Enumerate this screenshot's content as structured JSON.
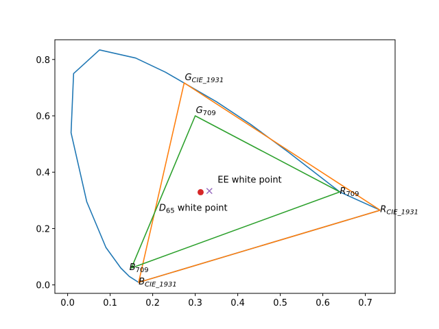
{
  "chart_data": {
    "type": "line",
    "title": "",
    "xlabel": "",
    "ylabel": "",
    "xlim": [
      -0.03,
      0.77
    ],
    "ylim": [
      -0.03,
      0.87
    ],
    "grid": false,
    "x_ticks": [
      "0.0",
      "0.1",
      "0.2",
      "0.3",
      "0.4",
      "0.5",
      "0.6",
      "0.7"
    ],
    "y_ticks": [
      "0.0",
      "0.2",
      "0.4",
      "0.6",
      "0.8"
    ],
    "series": [
      {
        "color": "#1f77b4",
        "points": [
          [
            0.735,
            0.265
          ],
          [
            0.64,
            0.33
          ],
          [
            0.52,
            0.47
          ],
          [
            0.43,
            0.57
          ],
          [
            0.35,
            0.65
          ],
          [
            0.27,
            0.72
          ],
          [
            0.23,
            0.755
          ],
          [
            0.16,
            0.805
          ],
          [
            0.075,
            0.834
          ],
          [
            0.014,
            0.75
          ],
          [
            0.008,
            0.54
          ],
          [
            0.045,
            0.295
          ],
          [
            0.09,
            0.133
          ],
          [
            0.125,
            0.06
          ],
          [
            0.145,
            0.03
          ],
          [
            0.167,
            0.009
          ],
          [
            0.735,
            0.265
          ]
        ]
      },
      {
        "color": "#ff7f0e",
        "points": [
          [
            0.735,
            0.265
          ],
          [
            0.274,
            0.717
          ],
          [
            0.167,
            0.009
          ],
          [
            0.735,
            0.265
          ]
        ]
      },
      {
        "color": "#2ca02c",
        "points": [
          [
            0.64,
            0.33
          ],
          [
            0.3,
            0.6
          ],
          [
            0.15,
            0.06
          ],
          [
            0.64,
            0.33
          ]
        ]
      }
    ],
    "markers": [
      {
        "x": 0.3127,
        "y": 0.329,
        "shape": "circle",
        "color": "#d62728"
      },
      {
        "x": 0.3333,
        "y": 0.3333,
        "shape": "x",
        "color": "#9467bd"
      }
    ],
    "annotations": [
      {
        "text": "G",
        "sub": "CIE_1931",
        "x": 0.274,
        "y": 0.717
      },
      {
        "text": "G",
        "sub": "709",
        "x": 0.3,
        "y": 0.6
      },
      {
        "text": "R",
        "sub": "709",
        "x": 0.64,
        "y": 0.33
      },
      {
        "text": "R",
        "sub": "CIE_1931",
        "x": 0.735,
        "y": 0.265
      },
      {
        "text": "B",
        "sub": "709",
        "x": 0.15,
        "y": 0.06
      },
      {
        "text": "B",
        "sub": "CIE_1931",
        "x": 0.167,
        "y": 0.009
      },
      {
        "text": "D",
        "sub": "65",
        "suffix": " white point",
        "x": 0.215,
        "y": 0.27
      },
      {
        "text": "EE white point",
        "x": 0.3333,
        "y": 0.3333
      }
    ]
  }
}
